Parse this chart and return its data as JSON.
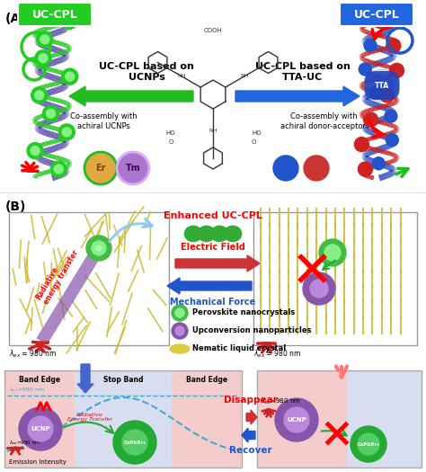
{
  "fig_width": 4.74,
  "fig_height": 5.25,
  "dpi": 100,
  "panel_A_label": "(A)",
  "panel_B_label": "(B)",
  "uccpl_green_text": "UC-CPL",
  "uccpl_blue_text": "UC-CPL",
  "uccpl_green_box_color": "#22cc22",
  "uccpl_blue_box_color": "#2266dd",
  "text_ucnps": "UC-CPL based on\nUCNPs",
  "text_tta": "UC-CPL based on\nTTA-UC",
  "text_co_ucnps": "Co-assembly with\nachiral UCNPs",
  "text_co_tta": "Co-assembly with\nachiral donor-acceptor",
  "text_enhanced": "Enhanced UC-CPL",
  "text_electric": "Electric Field",
  "text_mechanical": "Mechanical Force",
  "text_perovskite": "Perovskite nanocrystals",
  "text_upconversion": "Upconversion nanoparticles",
  "text_nematic": "Nematic liquid crystal",
  "text_radiative_B": "Radiative\nenergy transfer",
  "text_band_edge_left": "Band Edge",
  "text_stop_band": "Stop Band",
  "text_band_edge_right": "Band Edge",
  "text_emission": "Emission Intensity",
  "text_disappear": "Disappear",
  "text_recover": "Recover",
  "text_tta_label": "TTA",
  "text_er": "Er",
  "text_tm": "Tm",
  "green_color": "#33bb33",
  "purple_color": "#8855aa",
  "red_color": "#cc2222",
  "blue_color": "#2255cc",
  "yellow_color": "#ddcc55",
  "light_red_bg": "#f5cccc",
  "light_blue_bg": "#ccd8f0",
  "light_gray_bg": "#e8e8e8",
  "helix_purple": "#5544aa",
  "helix_blue": "#2244bb"
}
